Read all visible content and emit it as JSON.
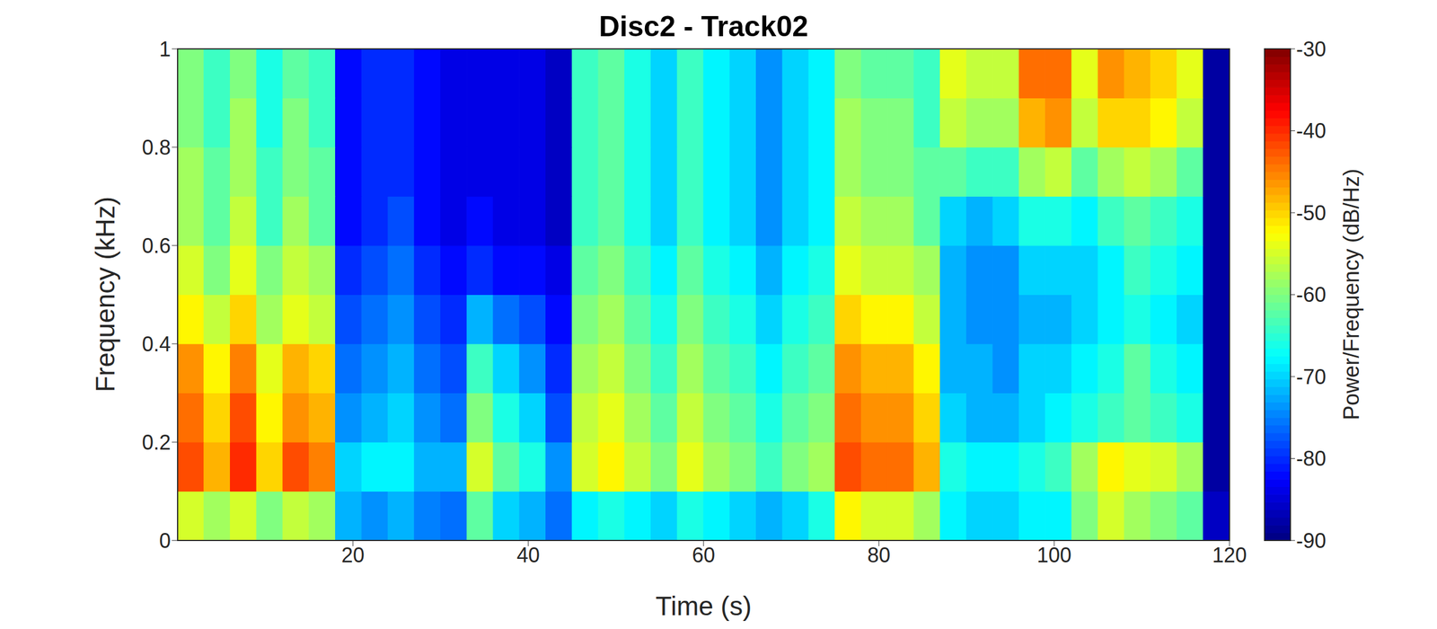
{
  "chart_data": {
    "type": "heatmap",
    "title": "Disc2 - Track02",
    "x_label": "Time (s)",
    "y_label": "Frequency (kHz)",
    "xlim": [
      0,
      120
    ],
    "xticks": [
      20,
      40,
      60,
      80,
      100,
      120
    ],
    "ylim": [
      0,
      1
    ],
    "yticks": [
      0,
      0.2,
      0.4,
      0.6,
      0.8,
      1
    ],
    "time_bins": [
      0,
      3,
      6,
      9,
      12,
      15,
      18,
      21,
      24,
      27,
      30,
      33,
      36,
      39,
      42,
      45,
      48,
      51,
      54,
      57,
      60,
      63,
      66,
      69,
      72,
      75,
      78,
      81,
      84,
      87,
      90,
      93,
      96,
      99,
      102,
      105,
      108,
      111,
      114,
      117,
      120
    ],
    "frequency_bins": [
      0,
      0.1,
      0.2,
      0.3,
      0.4,
      0.5,
      0.6,
      0.7,
      0.8,
      0.9,
      1
    ],
    "cells": [
      [
        -55,
        -58,
        -55,
        -60,
        -56,
        -58,
        -72,
        -74,
        -72,
        -75,
        -76,
        -62,
        -70,
        -72,
        -76,
        -68,
        -66,
        -68,
        -70,
        -66,
        -68,
        -70,
        -72,
        -70,
        -66,
        -52,
        -55,
        -55,
        -58,
        -68,
        -70,
        -70,
        -68,
        -68,
        -60,
        -55,
        -58,
        -60,
        -62,
        -86
      ],
      [
        -42,
        -48,
        -40,
        -50,
        -42,
        -45,
        -70,
        -68,
        -68,
        -72,
        -72,
        -55,
        -62,
        -66,
        -74,
        -55,
        -52,
        -56,
        -60,
        -54,
        -58,
        -60,
        -64,
        -60,
        -58,
        -42,
        -44,
        -44,
        -48,
        -66,
        -68,
        -68,
        -66,
        -64,
        -58,
        -52,
        -54,
        -55,
        -58,
        -88
      ],
      [
        -44,
        -50,
        -42,
        -52,
        -46,
        -48,
        -74,
        -72,
        -70,
        -74,
        -76,
        -60,
        -66,
        -70,
        -78,
        -56,
        -54,
        -58,
        -62,
        -56,
        -60,
        -62,
        -66,
        -62,
        -60,
        -44,
        -46,
        -46,
        -50,
        -70,
        -72,
        -72,
        -70,
        -68,
        -66,
        -64,
        -62,
        -64,
        -66,
        -88
      ],
      [
        -46,
        -52,
        -45,
        -54,
        -48,
        -50,
        -76,
        -74,
        -72,
        -76,
        -78,
        -64,
        -70,
        -74,
        -80,
        -58,
        -56,
        -60,
        -64,
        -58,
        -62,
        -64,
        -68,
        -64,
        -62,
        -46,
        -48,
        -48,
        -52,
        -72,
        -72,
        -74,
        -70,
        -70,
        -68,
        -66,
        -62,
        -66,
        -68,
        -88
      ],
      [
        -52,
        -56,
        -50,
        -58,
        -54,
        -56,
        -78,
        -76,
        -74,
        -78,
        -80,
        -72,
        -76,
        -78,
        -82,
        -60,
        -58,
        -62,
        -66,
        -60,
        -64,
        -66,
        -70,
        -66,
        -64,
        -50,
        -52,
        -52,
        -56,
        -72,
        -74,
        -74,
        -72,
        -72,
        -70,
        -68,
        -66,
        -68,
        -70,
        -88
      ],
      [
        -55,
        -60,
        -54,
        -60,
        -56,
        -58,
        -80,
        -78,
        -76,
        -80,
        -82,
        -80,
        -82,
        -82,
        -84,
        -62,
        -60,
        -64,
        -68,
        -62,
        -66,
        -68,
        -72,
        -68,
        -66,
        -54,
        -56,
        -56,
        -58,
        -72,
        -74,
        -74,
        -70,
        -70,
        -70,
        -68,
        -64,
        -66,
        -68,
        -88
      ],
      [
        -58,
        -62,
        -56,
        -64,
        -58,
        -62,
        -82,
        -80,
        -78,
        -82,
        -84,
        -82,
        -84,
        -84,
        -86,
        -64,
        -62,
        -66,
        -70,
        -64,
        -68,
        -70,
        -74,
        -70,
        -68,
        -56,
        -58,
        -58,
        -62,
        -70,
        -72,
        -70,
        -66,
        -66,
        -68,
        -64,
        -62,
        -64,
        -66,
        -88
      ],
      [
        -58,
        -62,
        -58,
        -64,
        -60,
        -62,
        -82,
        -80,
        -80,
        -82,
        -84,
        -84,
        -84,
        -84,
        -86,
        -64,
        -62,
        -66,
        -70,
        -64,
        -68,
        -70,
        -74,
        -70,
        -68,
        -58,
        -60,
        -60,
        -62,
        -62,
        -64,
        -64,
        -58,
        -56,
        -62,
        -58,
        -56,
        -58,
        -62,
        -88
      ],
      [
        -60,
        -64,
        -58,
        -66,
        -60,
        -64,
        -82,
        -80,
        -80,
        -82,
        -84,
        -84,
        -84,
        -84,
        -86,
        -64,
        -62,
        -66,
        -70,
        -64,
        -68,
        -70,
        -74,
        -70,
        -68,
        -58,
        -60,
        -60,
        -64,
        -56,
        -58,
        -58,
        -48,
        -46,
        -56,
        -50,
        -50,
        -52,
        -56,
        -88
      ],
      [
        -60,
        -64,
        -60,
        -66,
        -62,
        -64,
        -82,
        -80,
        -80,
        -82,
        -84,
        -84,
        -84,
        -84,
        -86,
        -64,
        -62,
        -66,
        -70,
        -64,
        -68,
        -70,
        -74,
        -70,
        -68,
        -60,
        -62,
        -62,
        -64,
        -54,
        -56,
        -56,
        -44,
        -44,
        -54,
        -46,
        -48,
        -50,
        -54,
        -88
      ]
    ],
    "colorbar_label": "Power/Frequency (dB/Hz)",
    "colorbar_range": [
      -90,
      -30
    ],
    "colorbar_ticks": [
      -90,
      -80,
      -70,
      -60,
      -50,
      -40,
      -30
    ]
  }
}
